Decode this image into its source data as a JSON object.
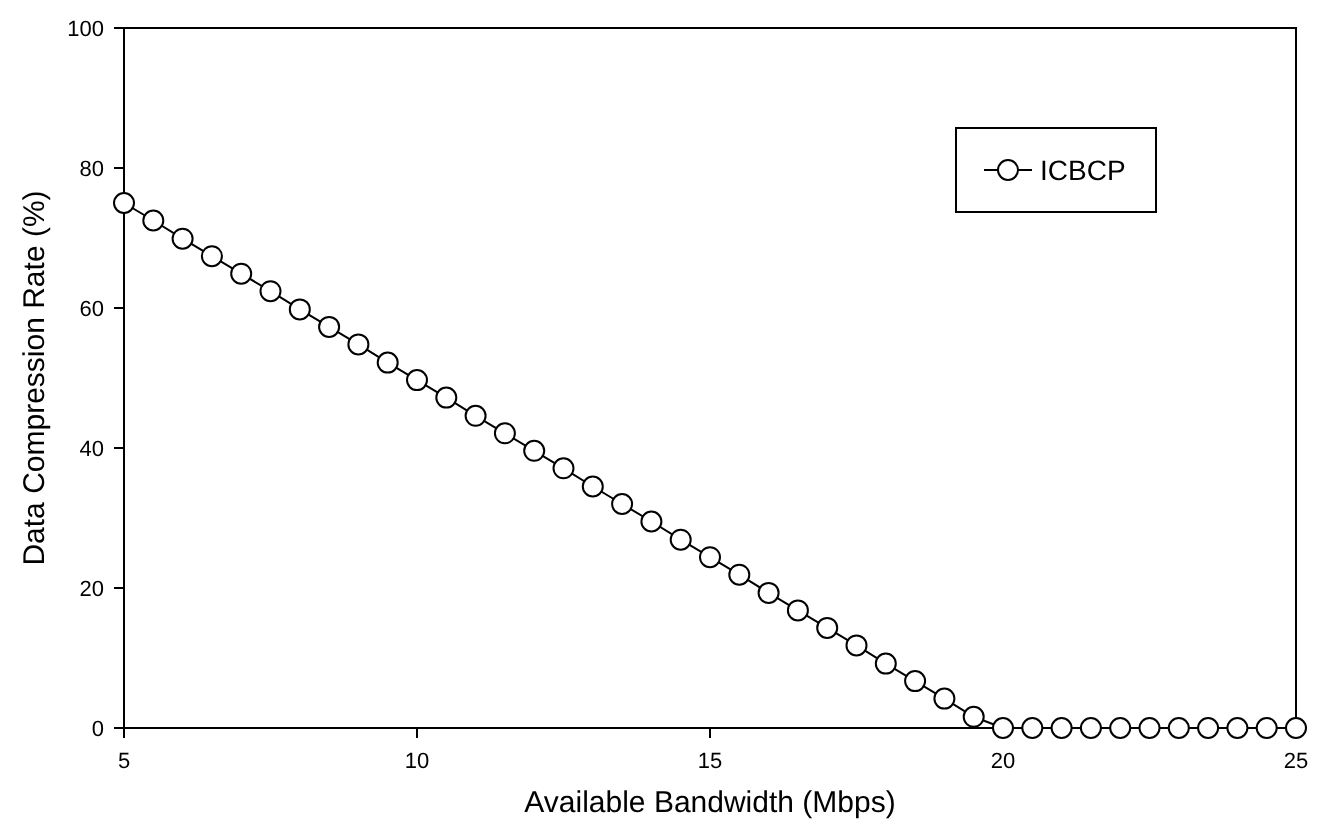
{
  "chart_data": {
    "type": "line",
    "xlabel": "Available Bandwidth (Mbps)",
    "ylabel": "Data Compression Rate (%)",
    "x": [
      5,
      5.5,
      6,
      6.5,
      7,
      7.5,
      8,
      8.5,
      9,
      9.5,
      10,
      10.5,
      11,
      11.5,
      12,
      12.5,
      13,
      13.5,
      14,
      14.5,
      15,
      15.5,
      16,
      16.5,
      17,
      17.5,
      18,
      18.5,
      19,
      19.5,
      20,
      20.5,
      21,
      21.5,
      22,
      22.5,
      23,
      23.5,
      24,
      24.5,
      25
    ],
    "series": [
      {
        "name": "ICBCP",
        "color": "#000000",
        "values": [
          75,
          72.5,
          69.9,
          67.4,
          64.9,
          62.4,
          59.8,
          57.3,
          54.8,
          52.2,
          49.7,
          47.2,
          44.6,
          42.1,
          39.6,
          37.1,
          34.5,
          32.0,
          29.5,
          26.9,
          24.4,
          21.9,
          19.3,
          16.8,
          14.3,
          11.8,
          9.2,
          6.7,
          4.2,
          1.6,
          0,
          0,
          0,
          0,
          0,
          0,
          0,
          0,
          0,
          0,
          0
        ]
      }
    ],
    "xlim": [
      5,
      25
    ],
    "ylim": [
      0,
      100
    ],
    "xticks": [
      5,
      10,
      15,
      20,
      25
    ],
    "yticks": [
      0,
      20,
      40,
      60,
      80,
      100
    ],
    "grid": false,
    "legend": "top right",
    "marker": "circle",
    "line_style": "solid"
  }
}
